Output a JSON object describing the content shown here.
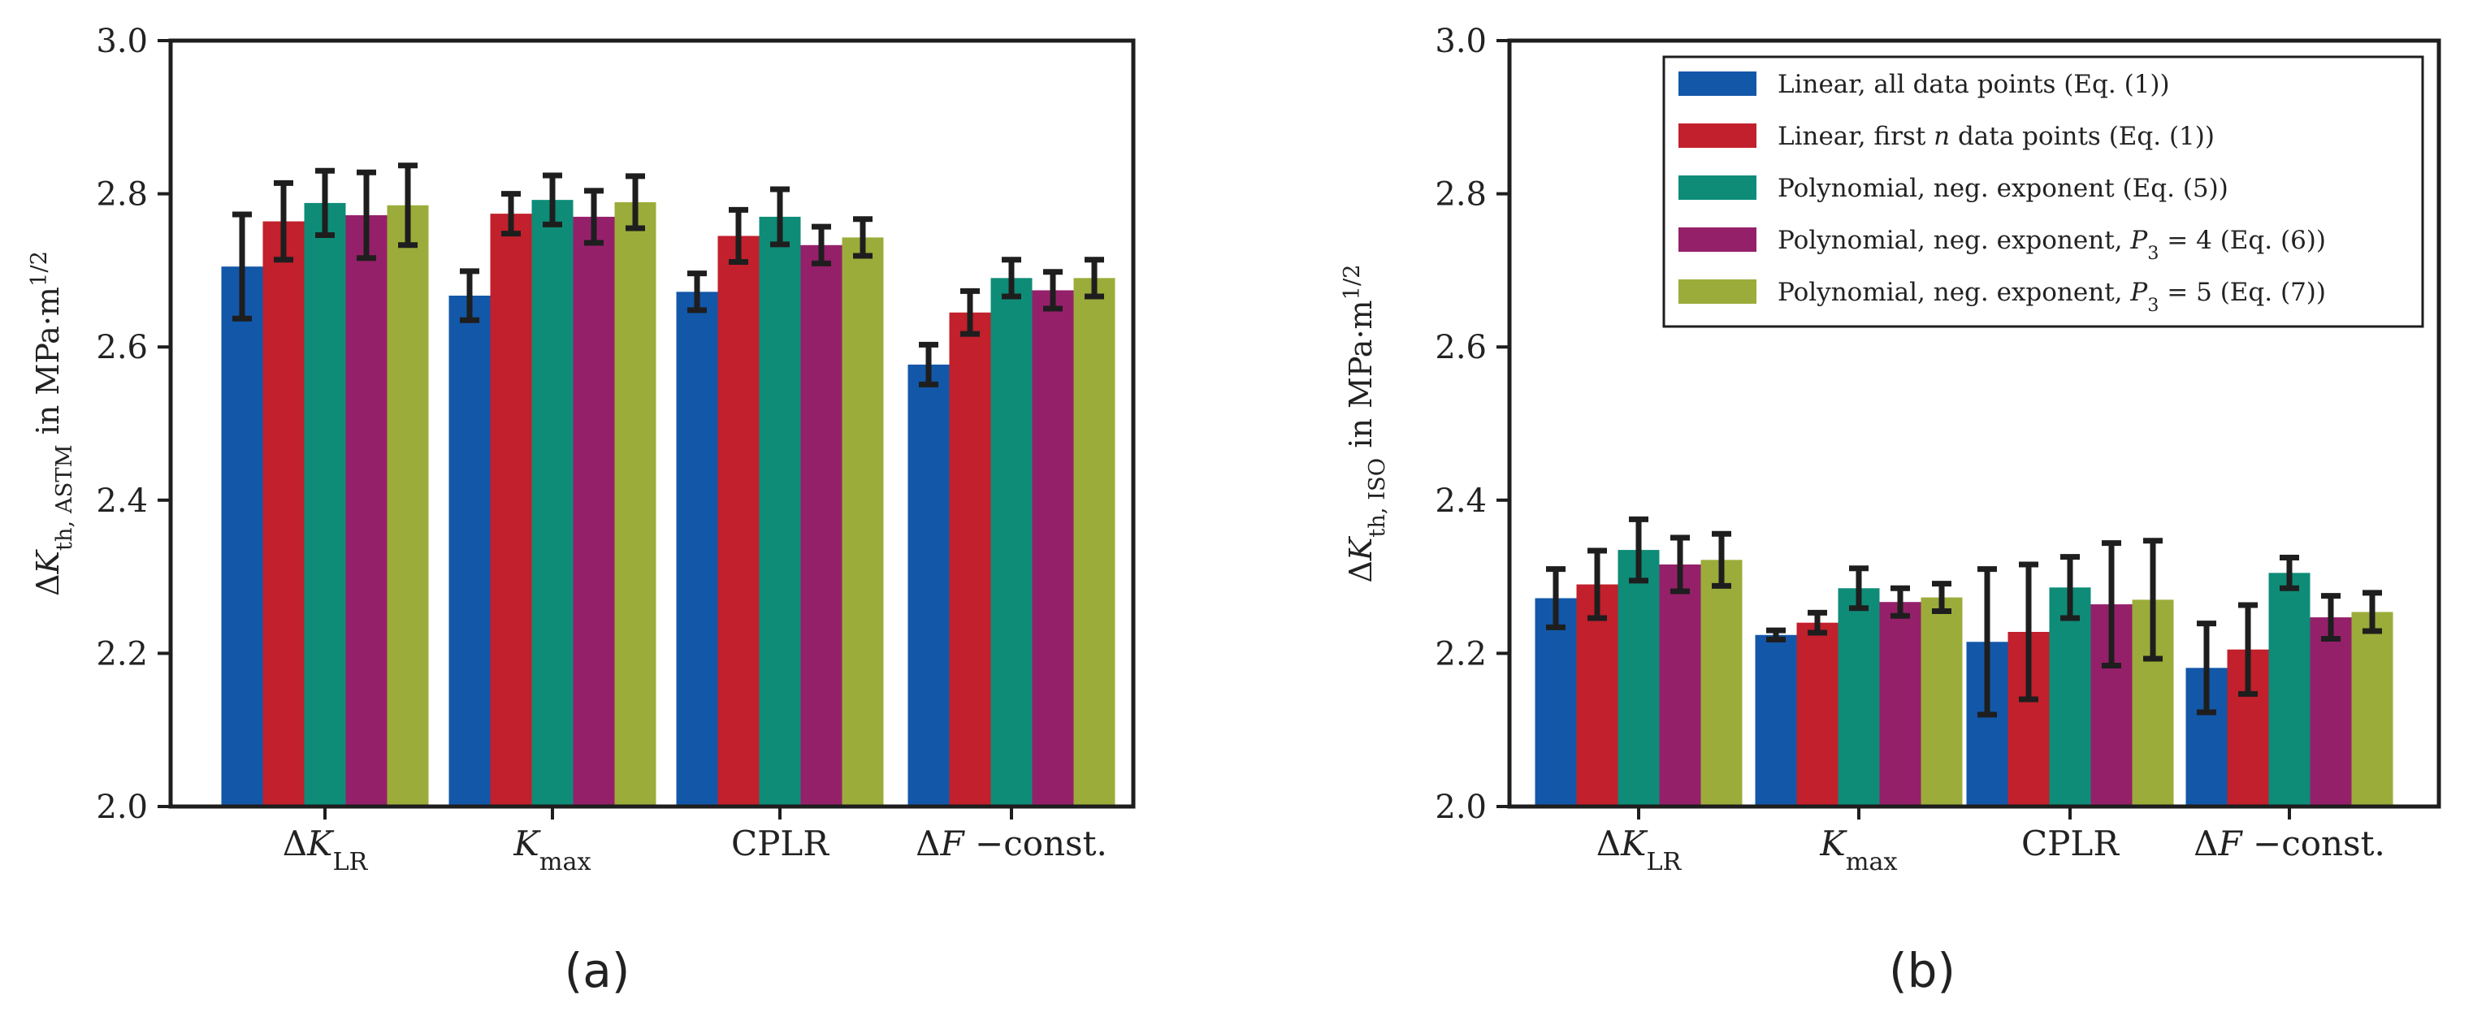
{
  "chart_data": [
    {
      "type": "bar",
      "panel_label": "(a)",
      "ylabel": "ΔK_th, ASTM in MPa·m^1/2",
      "ylim": [
        2.0,
        3.0
      ],
      "yticks": [
        2.0,
        2.2,
        2.4,
        2.6,
        2.8,
        3.0
      ],
      "ytick_labels": [
        "2.0",
        "2.2",
        "2.4",
        "2.6",
        "2.8",
        "3.0"
      ],
      "categories": [
        "ΔK_LR",
        "K_max",
        "CPLR",
        "ΔF −const."
      ],
      "series": [
        {
          "name": "Linear, all data points (Eq. (1))",
          "color": "#1357a8",
          "values": [
            2.705,
            2.667,
            2.672,
            2.577
          ],
          "errors": [
            0.068,
            0.032,
            0.024,
            0.026
          ]
        },
        {
          "name": "Linear, first n data points (Eq. (1))",
          "color": "#c1202c",
          "values": [
            2.764,
            2.774,
            2.745,
            2.645
          ],
          "errors": [
            0.05,
            0.026,
            0.034,
            0.028
          ]
        },
        {
          "name": "Polynomial, neg. exponent (Eq. (5))",
          "color": "#0e8c78",
          "values": [
            2.788,
            2.792,
            2.77,
            2.69
          ],
          "errors": [
            0.042,
            0.032,
            0.036,
            0.024
          ]
        },
        {
          "name": "Polynomial, neg. exponent, P3 = 4 (Eq. (6))",
          "color": "#95206a",
          "values": [
            2.772,
            2.77,
            2.733,
            2.674
          ],
          "errors": [
            0.056,
            0.034,
            0.024,
            0.024
          ]
        },
        {
          "name": "Polynomial, neg. exponent, P3 = 5 (Eq. (7))",
          "color": "#9cac3a",
          "values": [
            2.785,
            2.789,
            2.743,
            2.69
          ],
          "errors": [
            0.052,
            0.034,
            0.024,
            0.024
          ]
        }
      ]
    },
    {
      "type": "bar",
      "panel_label": "(b)",
      "ylabel": "ΔK_th, ISO in MPa·m^1/2",
      "ylim": [
        2.0,
        3.0
      ],
      "yticks": [
        2.0,
        2.2,
        2.4,
        2.6,
        2.8,
        3.0
      ],
      "ytick_labels": [
        "2.0",
        "2.2",
        "2.4",
        "2.6",
        "2.8",
        "3.0"
      ],
      "categories": [
        "ΔK_LR",
        "K_max",
        "CPLR",
        "ΔF −const."
      ],
      "legend_position": "top-right",
      "series": [
        {
          "name": "Linear, all data points (Eq. (1))",
          "color": "#1357a8",
          "values": [
            2.272,
            2.224,
            2.215,
            2.181
          ],
          "errors": [
            0.038,
            0.006,
            0.095,
            0.058
          ]
        },
        {
          "name": "Linear, first n data points (Eq. (1))",
          "color": "#c1202c",
          "values": [
            2.29,
            2.24,
            2.228,
            2.205
          ],
          "errors": [
            0.044,
            0.013,
            0.088,
            0.058
          ]
        },
        {
          "name": "Polynomial, neg. exponent (Eq. (5))",
          "color": "#0e8c78",
          "values": [
            2.335,
            2.285,
            2.286,
            2.305
          ],
          "errors": [
            0.04,
            0.026,
            0.04,
            0.02
          ]
        },
        {
          "name": "Polynomial, neg. exponent, P3 = 4 (Eq. (6))",
          "color": "#95206a",
          "values": [
            2.316,
            2.267,
            2.264,
            2.247
          ],
          "errors": [
            0.035,
            0.018,
            0.08,
            0.028
          ]
        },
        {
          "name": "Polynomial, neg. exponent, P3 = 5 (Eq. (7))",
          "color": "#9cac3a",
          "values": [
            2.322,
            2.273,
            2.27,
            2.254
          ],
          "errors": [
            0.034,
            0.018,
            0.077,
            0.025
          ]
        }
      ]
    }
  ]
}
